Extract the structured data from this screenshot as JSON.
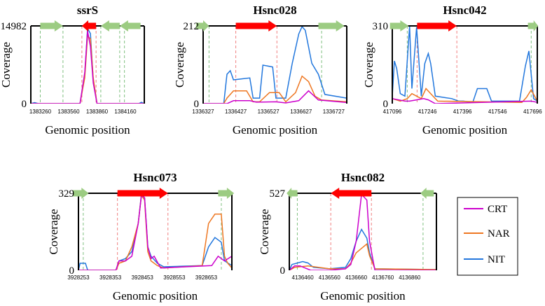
{
  "chart_data": {
    "type": "line",
    "series_legend": [
      {
        "name": "CRT",
        "color": "#cc00cc"
      },
      {
        "name": "NAR",
        "color": "#ee7722"
      },
      {
        "name": "NIT",
        "color": "#2277dd"
      }
    ],
    "panels": [
      {
        "id": "ssrS",
        "title": "ssrS",
        "ylabel": "Coverage",
        "xlabel": "Genomic position",
        "ylim": [
          0,
          14982
        ],
        "xlim": [
          1383160,
          1384360
        ],
        "xticks": [
          1383260,
          1383560,
          1383860,
          1384160
        ],
        "xtick_labels": [
          "1383260",
          "1383560",
          "1383860",
          "1384160"
        ],
        "genes": [
          {
            "start": 1383260,
            "end": 1383500,
            "dir": "right",
            "color": "green"
          },
          {
            "start": 1383700,
            "end": 1383850,
            "dir": "left",
            "color": "red"
          },
          {
            "start": 1383900,
            "end": 1384100,
            "dir": "left",
            "color": "green"
          },
          {
            "start": 1384100,
            "end": 1384320,
            "dir": "left",
            "color": "green"
          }
        ],
        "boundaries_green": [
          1383260,
          1383500,
          1383900,
          1384100,
          1384150
        ],
        "boundaries_red": [
          1383700,
          1383850
        ],
        "series": [
          {
            "name": "CRT",
            "x": [
              1383160,
              1383680,
              1383730,
              1383760,
              1383790,
              1383820,
              1383860,
              1384360
            ],
            "y": [
              0,
              0,
              6000,
              14000,
              11000,
              4000,
              0,
              0
            ]
          },
          {
            "name": "NAR",
            "x": [
              1383160,
              1383680,
              1383730,
              1383760,
              1383790,
              1383820,
              1383860,
              1384360
            ],
            "y": [
              0,
              0,
              5000,
              13000,
              12500,
              5000,
              0,
              0
            ]
          },
          {
            "name": "NIT",
            "x": [
              1383160,
              1383200,
              1383240,
              1383680,
              1383730,
              1383760,
              1383790,
              1383820,
              1383860,
              1384300,
              1384330,
              1384360
            ],
            "y": [
              0,
              200,
              0,
              0,
              5500,
              14500,
              13500,
              4500,
              0,
              0,
              250,
              0
            ]
          }
        ]
      },
      {
        "id": "Hsnc028",
        "title": "Hsnc028",
        "ylabel": "Coverage",
        "xlabel": "Genomic position",
        "ylim": [
          0,
          212
        ],
        "xlim": [
          1336327,
          1336767
        ],
        "xticks": [
          1336327,
          1336427,
          1336527,
          1336627,
          1336727
        ],
        "xtick_labels": [
          "1336327",
          "1336427",
          "1336527",
          "1336627",
          "1336727"
        ],
        "genes": [
          {
            "start": 1336305,
            "end": 1336345,
            "dir": "right",
            "color": "green"
          },
          {
            "start": 1336427,
            "end": 1336553,
            "dir": "right",
            "color": "red"
          },
          {
            "start": 1336680,
            "end": 1336760,
            "dir": "right",
            "color": "green"
          }
        ],
        "boundaries_green": [
          1336345,
          1336690
        ],
        "boundaries_red": [
          1336427,
          1336553
        ],
        "series": [
          {
            "name": "CRT",
            "x": [
              1336327,
              1336400,
              1336420,
              1336470,
              1336490,
              1336550,
              1336580,
              1336620,
              1336650,
              1336680,
              1336767
            ],
            "y": [
              0,
              0,
              8,
              8,
              4,
              5,
              2,
              8,
              35,
              10,
              3
            ]
          },
          {
            "name": "NAR",
            "x": [
              1336327,
              1336390,
              1336400,
              1336420,
              1336460,
              1336480,
              1336500,
              1336530,
              1336560,
              1336580,
              1336610,
              1336630,
              1336650,
              1336670,
              1336690,
              1336767
            ],
            "y": [
              0,
              0,
              15,
              35,
              35,
              5,
              5,
              30,
              30,
              5,
              30,
              75,
              60,
              20,
              10,
              5
            ]
          },
          {
            "name": "NIT",
            "x": [
              1336327,
              1336390,
              1336400,
              1336410,
              1336420,
              1336470,
              1336480,
              1336500,
              1336510,
              1336540,
              1336550,
              1336580,
              1336600,
              1336620,
              1336630,
              1336640,
              1336660,
              1336680,
              1336700,
              1336767
            ],
            "y": [
              0,
              0,
              80,
              90,
              65,
              70,
              15,
              15,
              105,
              100,
              15,
              15,
              110,
              190,
              210,
              200,
              110,
              80,
              25,
              15
            ]
          }
        ]
      },
      {
        "id": "Hsnc042",
        "title": "Hsnc042",
        "ylabel": "Coverage",
        "xlabel": "Genomic position",
        "ylim": [
          0,
          310
        ],
        "xlim": [
          417096,
          417716
        ],
        "xticks": [
          417096,
          417246,
          417396,
          417546,
          417696
        ],
        "xtick_labels": [
          "417096",
          "417246",
          "417396",
          "417546",
          "417696"
        ],
        "genes": [
          {
            "start": 417086,
            "end": 417166,
            "dir": "right",
            "color": "green"
          },
          {
            "start": 417202,
            "end": 417372,
            "dir": "right",
            "color": "red"
          },
          {
            "start": 417676,
            "end": 417720,
            "dir": "right",
            "color": "green"
          }
        ],
        "boundaries_green": [
          417160,
          417690
        ],
        "boundaries_red": [
          417202,
          417372
        ],
        "series": [
          {
            "name": "CRT",
            "x": [
              417096,
              417150,
              417170,
              417200,
              417230,
              417250,
              417280,
              417690,
              417716
            ],
            "y": [
              20,
              10,
              10,
              15,
              20,
              15,
              0,
              10,
              5
            ]
          },
          {
            "name": "NAR",
            "x": [
              417096,
              417130,
              417160,
              417180,
              417200,
              417220,
              417240,
              417260,
              417290,
              417650,
              417670,
              417690,
              417716
            ],
            "y": [
              20,
              10,
              20,
              40,
              30,
              20,
              60,
              40,
              10,
              5,
              25,
              55,
              10
            ]
          },
          {
            "name": "NIT",
            "x": [
              417096,
              417105,
              417115,
              417130,
              417150,
              417170,
              417180,
              417200,
              417220,
              417235,
              417250,
              417260,
              417280,
              417350,
              417380,
              417400,
              417440,
              417460,
              417500,
              417520,
              417600,
              417640,
              417665,
              417680,
              417700,
              417716
            ],
            "y": [
              30,
              170,
              140,
              40,
              30,
              310,
              60,
              305,
              30,
              160,
              200,
              160,
              30,
              20,
              10,
              10,
              5,
              60,
              60,
              10,
              10,
              10,
              150,
              210,
              20,
              10
            ]
          }
        ]
      },
      {
        "id": "Hsnc073",
        "title": "Hsnc073",
        "ylabel": "Coverage",
        "xlabel": "Genomic position",
        "ylim": [
          0,
          329
        ],
        "xlim": [
          3928253,
          3928733
        ],
        "xticks": [
          3928253,
          3928353,
          3928453,
          3928553,
          3928653
        ],
        "xtick_labels": [
          "3928253",
          "3928353",
          "3928453",
          "3928553",
          "3928653"
        ],
        "genes": [
          {
            "start": 3928235,
            "end": 3928285,
            "dir": "right",
            "color": "green"
          },
          {
            "start": 3928375,
            "end": 3928533,
            "dir": "right",
            "color": "red"
          },
          {
            "start": 3928690,
            "end": 3928740,
            "dir": "right",
            "color": "green"
          }
        ],
        "boundaries_green": [
          3928268,
          3928700
        ],
        "boundaries_red": [
          3928375,
          3928533
        ],
        "series": [
          {
            "name": "CRT",
            "x": [
              3928253,
              3928370,
              3928380,
              3928400,
              3928420,
              3928440,
              3928450,
              3928460,
              3928470,
              3928480,
              3928490,
              3928510,
              3928670,
              3928690,
              3928710,
              3928733
            ],
            "y": [
              0,
              0,
              40,
              40,
              60,
              200,
              320,
              310,
              100,
              50,
              60,
              10,
              20,
              60,
              40,
              60
            ]
          },
          {
            "name": "NAR",
            "x": [
              3928253,
              3928370,
              3928380,
              3928400,
              3928420,
              3928440,
              3928450,
              3928460,
              3928470,
              3928480,
              3928500,
              3928520,
              3928640,
              3928660,
              3928680,
              3928700,
              3928710,
              3928720,
              3928733
            ],
            "y": [
              0,
              0,
              30,
              40,
              100,
              200,
              320,
              300,
              80,
              40,
              20,
              10,
              20,
              200,
              240,
              240,
              60,
              30,
              10
            ]
          },
          {
            "name": "NIT",
            "x": [
              3928253,
              3928258,
              3928275,
              3928282,
              3928370,
              3928380,
              3928400,
              3928420,
              3928440,
              3928450,
              3928460,
              3928470,
              3928480,
              3928500,
              3928520,
              3928640,
              3928660,
              3928680,
              3928700,
              3928710,
              3928733
            ],
            "y": [
              0,
              30,
              30,
              0,
              0,
              40,
              50,
              80,
              200,
              325,
              310,
              100,
              60,
              30,
              15,
              20,
              100,
              140,
              120,
              40,
              20
            ]
          }
        ]
      },
      {
        "id": "Hsnc082",
        "title": "Hsnc082",
        "ylabel": "Coverage",
        "xlabel": "Genomic position",
        "ylim": [
          0,
          527
        ],
        "xlim": [
          4136410,
          4136960
        ],
        "xticks": [
          4136460,
          4136560,
          4136660,
          4136760,
          4136860
        ],
        "xtick_labels": [
          "4136460",
          "4136560",
          "4136660",
          "4136760",
          "4136860"
        ],
        "genes": [
          {
            "start": 4136400,
            "end": 4136440,
            "dir": "left",
            "color": "green"
          },
          {
            "start": 4136565,
            "end": 4136717,
            "dir": "left",
            "color": "red"
          },
          {
            "start": 4136900,
            "end": 4136950,
            "dir": "left",
            "color": "green"
          }
        ],
        "boundaries_green": [
          4136440,
          4136910
        ],
        "boundaries_red": [
          4136565,
          4136717
        ],
        "series": [
          {
            "name": "CRT",
            "x": [
              4136410,
              4136430,
              4136450,
              4136490,
              4136560,
              4136620,
              4136640,
              4136660,
              4136680,
              4136700,
              4136710,
              4136730,
              4136960
            ],
            "y": [
              0,
              30,
              30,
              0,
              0,
              10,
              40,
              200,
              520,
              480,
              200,
              0,
              0
            ]
          },
          {
            "name": "NAR",
            "x": [
              4136410,
              4136430,
              4136480,
              4136560,
              4136620,
              4136640,
              4136660,
              4136680,
              4136700,
              4136710,
              4136730,
              4136960
            ],
            "y": [
              0,
              20,
              30,
              10,
              10,
              50,
              120,
              150,
              180,
              100,
              10,
              5
            ]
          },
          {
            "name": "NIT",
            "x": [
              4136410,
              4136420,
              4136440,
              4136460,
              4136480,
              4136500,
              4136560,
              4136620,
              4136640,
              4136660,
              4136680,
              4136700,
              4136710,
              4136730,
              4136960
            ],
            "y": [
              0,
              40,
              50,
              60,
              50,
              20,
              10,
              20,
              80,
              200,
              280,
              220,
              120,
              10,
              5
            ]
          }
        ]
      }
    ]
  },
  "colors": {
    "green_gene": "#9ccc82",
    "red_gene": "#ff0000",
    "green_boundary": "#80c080",
    "red_boundary": "#f08080"
  }
}
